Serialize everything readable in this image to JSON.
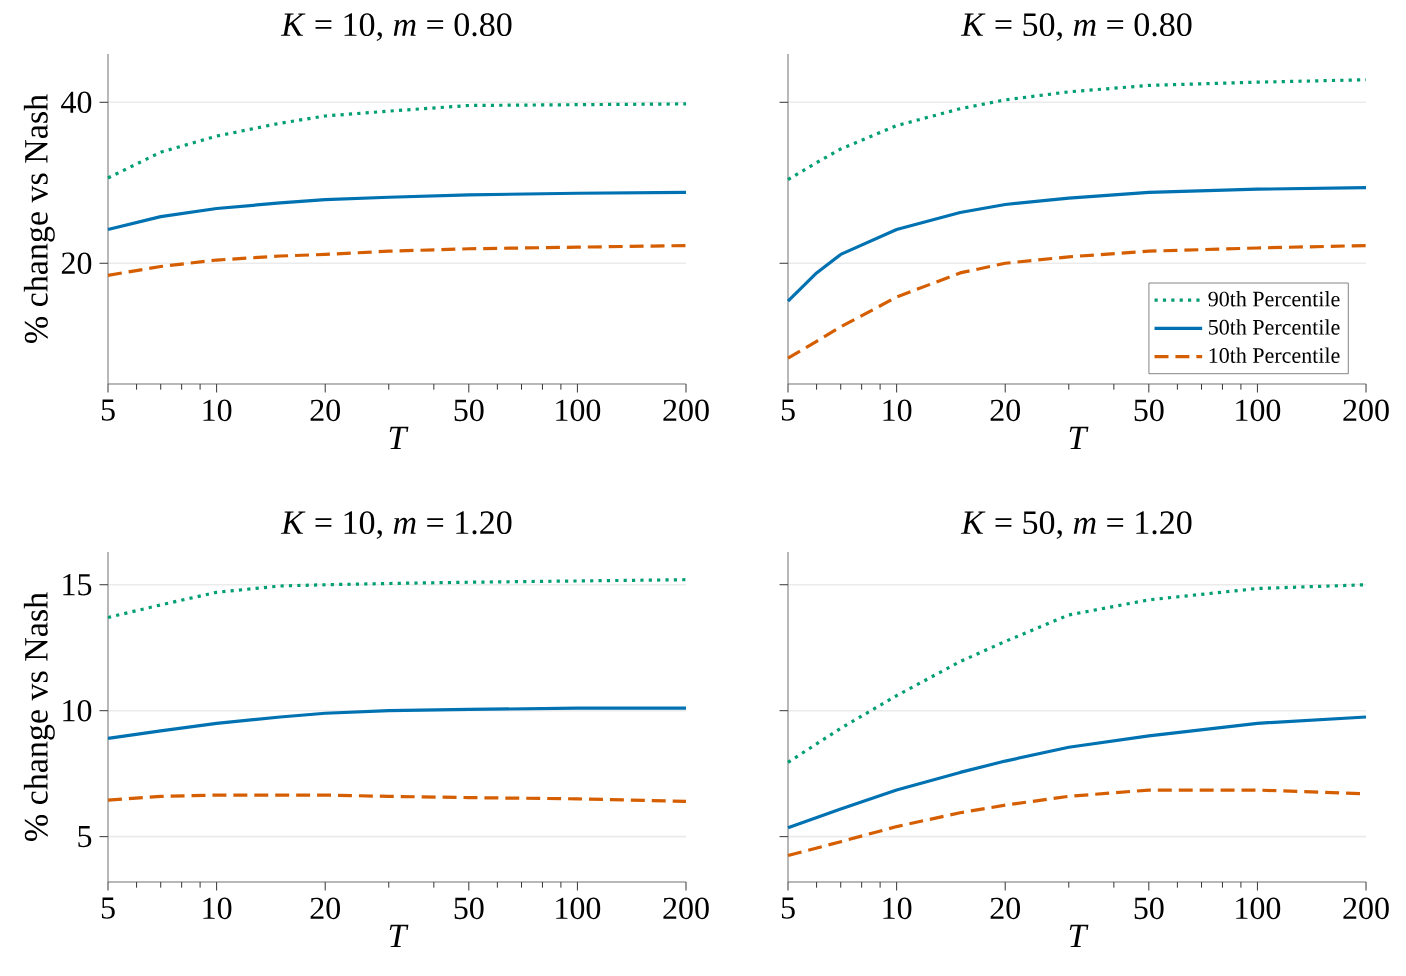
{
  "chart_data": [
    {
      "type": "line",
      "title": "*K* = 10,  *m* = 0.80",
      "xlabel": "T",
      "ylabel": "% change vs Nash",
      "x": [
        5,
        7,
        10,
        15,
        20,
        30,
        50,
        100,
        200
      ],
      "log": "x",
      "grid": "y",
      "xlim": [
        5,
        200
      ],
      "ylim": [
        5,
        46
      ],
      "xticks": [
        5,
        10,
        20,
        50,
        100,
        200
      ],
      "yticks": [
        20,
        40
      ],
      "series": [
        {
          "color": "#009e73",
          "line_style": "dotted",
          "values": [
            30.6,
            33.8,
            35.8,
            37.4,
            38.3,
            38.9,
            39.6,
            39.7,
            39.8
          ]
        },
        {
          "color": "#0072b2",
          "line_style": "solid",
          "values": [
            24.2,
            25.8,
            26.8,
            27.5,
            27.9,
            28.2,
            28.5,
            28.7,
            28.8
          ]
        },
        {
          "color": "#d55e00",
          "line_style": "dashed",
          "values": [
            18.5,
            19.6,
            20.4,
            20.9,
            21.1,
            21.5,
            21.8,
            22.0,
            22.2
          ]
        }
      ]
    },
    {
      "type": "line",
      "title": "*K* = 50,  *m* = 0.80",
      "xlabel": "T",
      "x": [
        5,
        6,
        7,
        10,
        15,
        20,
        30,
        50,
        100,
        200
      ],
      "log": "x",
      "grid": "y",
      "legend": "bottom right",
      "tick_labels": "x",
      "xlim": [
        5,
        200
      ],
      "ylim": [
        5,
        46
      ],
      "xticks": [
        5,
        10,
        20,
        50,
        100,
        200
      ],
      "yticks": [
        20,
        40
      ],
      "series": [
        {
          "name": "90th Percentile",
          "color": "#009e73",
          "line_style": "dotted",
          "values": [
            30.4,
            32.5,
            34.2,
            37.1,
            39.2,
            40.3,
            41.3,
            42.1,
            42.5,
            42.8
          ]
        },
        {
          "name": "50th Percentile",
          "color": "#0072b2",
          "line_style": "solid",
          "values": [
            15.3,
            18.8,
            21.1,
            24.2,
            26.3,
            27.3,
            28.1,
            28.8,
            29.2,
            29.4
          ]
        },
        {
          "name": "10th Percentile",
          "color": "#d55e00",
          "line_style": "dashed",
          "values": [
            8.2,
            10.3,
            12.1,
            15.8,
            18.8,
            20.0,
            20.8,
            21.5,
            21.9,
            22.2
          ]
        }
      ]
    },
    {
      "type": "line",
      "title": "*K* = 10,  *m* = 1.20",
      "xlabel": "T",
      "ylabel": "% change vs Nash",
      "x": [
        5,
        7,
        10,
        15,
        20,
        30,
        50,
        100,
        200
      ],
      "log": "x",
      "grid": "y",
      "xlim": [
        5,
        200
      ],
      "ylim": [
        3.2,
        16.3
      ],
      "xticks": [
        5,
        10,
        20,
        50,
        100,
        200
      ],
      "yticks": [
        5,
        10,
        15
      ],
      "series": [
        {
          "color": "#009e73",
          "line_style": "dotted",
          "values": [
            13.7,
            14.2,
            14.7,
            14.95,
            15.0,
            15.05,
            15.1,
            15.15,
            15.2
          ]
        },
        {
          "color": "#0072b2",
          "line_style": "solid",
          "values": [
            8.9,
            9.2,
            9.5,
            9.75,
            9.9,
            10.0,
            10.05,
            10.1,
            10.1
          ]
        },
        {
          "color": "#d55e00",
          "line_style": "dashed",
          "values": [
            6.45,
            6.6,
            6.65,
            6.65,
            6.65,
            6.6,
            6.55,
            6.5,
            6.4
          ]
        }
      ]
    },
    {
      "type": "line",
      "title": "*K* = 50,  *m* = 1.20",
      "xlabel": "T",
      "x": [
        5,
        7,
        10,
        15,
        20,
        30,
        50,
        100,
        200
      ],
      "log": "x",
      "grid": "y",
      "tick_labels": "x",
      "xlim": [
        5,
        200
      ],
      "ylim": [
        3.2,
        16.3
      ],
      "xticks": [
        5,
        10,
        20,
        50,
        100,
        200
      ],
      "yticks": [
        5,
        10,
        15
      ],
      "series": [
        {
          "color": "#009e73",
          "line_style": "dotted",
          "values": [
            7.95,
            9.3,
            10.6,
            11.95,
            12.75,
            13.8,
            14.4,
            14.85,
            15.0
          ]
        },
        {
          "color": "#0072b2",
          "line_style": "solid",
          "values": [
            5.35,
            6.1,
            6.85,
            7.55,
            8.0,
            8.55,
            9.0,
            9.5,
            9.75
          ]
        },
        {
          "color": "#d55e00",
          "line_style": "dashed",
          "values": [
            4.25,
            4.8,
            5.4,
            5.95,
            6.25,
            6.6,
            6.85,
            6.85,
            6.7
          ]
        }
      ]
    }
  ]
}
